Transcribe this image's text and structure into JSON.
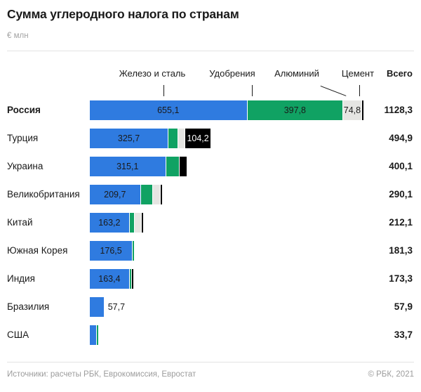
{
  "page": {
    "title": "Сумма углеродного налога по странам",
    "unit_label": "€ млн",
    "sources": "Источники: расчеты РБК, Еврокомиссия, Евростат",
    "copyright": "© РБК, 2021"
  },
  "colors": {
    "steel": "#2F7BE0",
    "fertilizers": "#10A263",
    "aluminum": "#E5E5E2",
    "cement": "#000000"
  },
  "chart_data": {
    "type": "bar",
    "orientation": "horizontal",
    "stacked": true,
    "title": "Сумма углеродного налога по странам",
    "unit": "€ млн",
    "segment_labels": [
      "Железо и сталь",
      "Удобрения",
      "Алюминий",
      "Цемент"
    ],
    "total_column_label": "Всего",
    "xlim": [
      0,
      1128.3
    ],
    "grid": false,
    "legend_position": "top-callouts",
    "categories": [
      "Россия",
      "Турция",
      "Украина",
      "Великобритания",
      "Китай",
      "Южная Корея",
      "Индия",
      "Бразилия",
      "США"
    ],
    "series": [
      {
        "name": "Железо и сталь",
        "color": "#2F7BE0",
        "values": [
          655.1,
          325.7,
          315.1,
          209.7,
          163.2,
          176.5,
          163.4,
          57.7,
          27.5
        ]
      },
      {
        "name": "Удобрения",
        "color": "#10A263",
        "values": [
          397.8,
          39.0,
          55.0,
          48.0,
          20.0,
          4.8,
          5.0,
          0.2,
          6.2
        ]
      },
      {
        "name": "Алюминий",
        "color": "#E5E5E2",
        "values": [
          74.8,
          26.0,
          0,
          30.0,
          25.0,
          0,
          0,
          0,
          0
        ]
      },
      {
        "name": "Цемент",
        "color": "#000000",
        "values": [
          0.6,
          104.2,
          30.0,
          2.4,
          3.9,
          0,
          4.9,
          0,
          0
        ]
      }
    ],
    "totals": [
      1128.3,
      494.9,
      400.1,
      290.1,
      212.1,
      181.3,
      173.3,
      57.9,
      33.7
    ]
  },
  "rows": [
    {
      "country": "Россия",
      "bold": true,
      "total_label": "1128,3",
      "segments": [
        {
          "key": "steel",
          "value": 655.1,
          "label": "655,1"
        },
        {
          "key": "fertilizers",
          "value": 397.8,
          "label": "397,8"
        },
        {
          "key": "aluminum",
          "value": 74.8,
          "label": "74,8"
        },
        {
          "key": "cement",
          "value": 0.6,
          "label": ""
        }
      ]
    },
    {
      "country": "Турция",
      "bold": false,
      "total_label": "494,9",
      "segments": [
        {
          "key": "steel",
          "value": 325.7,
          "label": "325,7"
        },
        {
          "key": "fertilizers",
          "value": 39.0,
          "label": ""
        },
        {
          "key": "aluminum",
          "value": 26.0,
          "label": ""
        },
        {
          "key": "cement",
          "value": 104.2,
          "label": "104,2"
        }
      ]
    },
    {
      "country": "Украина",
      "bold": false,
      "total_label": "400,1",
      "segments": [
        {
          "key": "steel",
          "value": 315.1,
          "label": "315,1"
        },
        {
          "key": "fertilizers",
          "value": 55.0,
          "label": ""
        },
        {
          "key": "cement",
          "value": 30.0,
          "label": ""
        }
      ]
    },
    {
      "country": "Великобритания",
      "bold": false,
      "total_label": "290,1",
      "segments": [
        {
          "key": "steel",
          "value": 209.7,
          "label": "209,7"
        },
        {
          "key": "fertilizers",
          "value": 48.0,
          "label": ""
        },
        {
          "key": "aluminum",
          "value": 30.0,
          "label": ""
        },
        {
          "key": "cement",
          "value": 2.4,
          "label": ""
        }
      ]
    },
    {
      "country": "Китай",
      "bold": false,
      "total_label": "212,1",
      "segments": [
        {
          "key": "steel",
          "value": 163.2,
          "label": "163,2"
        },
        {
          "key": "fertilizers",
          "value": 20.0,
          "label": ""
        },
        {
          "key": "aluminum",
          "value": 25.0,
          "label": ""
        },
        {
          "key": "cement",
          "value": 3.9,
          "label": ""
        }
      ]
    },
    {
      "country": "Южная Корея",
      "bold": false,
      "total_label": "181,3",
      "segments": [
        {
          "key": "steel",
          "value": 176.5,
          "label": "176,5"
        },
        {
          "key": "fertilizers",
          "value": 4.8,
          "label": ""
        }
      ]
    },
    {
      "country": "Индия",
      "bold": false,
      "total_label": "173,3",
      "segments": [
        {
          "key": "steel",
          "value": 163.4,
          "label": "163,4"
        },
        {
          "key": "fertilizers",
          "value": 5.0,
          "label": ""
        },
        {
          "key": "cement",
          "value": 4.9,
          "label": ""
        }
      ]
    },
    {
      "country": "Бразилия",
      "bold": false,
      "total_label": "57,9",
      "outside_label": "57,7",
      "segments": [
        {
          "key": "steel",
          "value": 57.7,
          "label": ""
        },
        {
          "key": "fertilizers",
          "value": 0.2,
          "label": ""
        }
      ]
    },
    {
      "country": "США",
      "bold": false,
      "total_label": "33,7",
      "segments": [
        {
          "key": "steel",
          "value": 27.5,
          "label": ""
        },
        {
          "key": "fertilizers",
          "value": 6.2,
          "label": ""
        }
      ]
    }
  ]
}
